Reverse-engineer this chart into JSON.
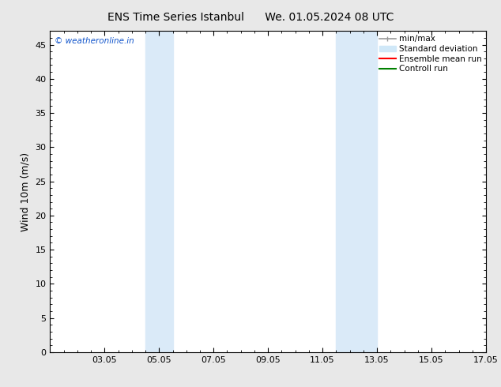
{
  "title_left": "ENS Time Series Istanbul",
  "title_right": "We. 01.05.2024 08 UTC",
  "ylabel": "Wind 10m (m/s)",
  "ylim": [
    0,
    47
  ],
  "yticks": [
    0,
    5,
    10,
    15,
    20,
    25,
    30,
    35,
    40,
    45
  ],
  "xlim": [
    1.0,
    17.0
  ],
  "xtick_labels": [
    "03.05",
    "05.05",
    "07.05",
    "09.05",
    "11.05",
    "13.05",
    "15.05",
    "17.05"
  ],
  "xtick_positions": [
    3,
    5,
    7,
    9,
    11,
    13,
    15,
    17
  ],
  "bg_color": "#e8e8e8",
  "plot_bg_color": "#ffffff",
  "shaded_bands": [
    {
      "x_start": 4.5,
      "x_end": 5.5,
      "color": "#daeaf8"
    },
    {
      "x_start": 11.5,
      "x_end": 13.0,
      "color": "#daeaf8"
    }
  ],
  "legend_items": [
    {
      "label": "min/max",
      "color": "#999999",
      "lw": 1.2,
      "ls": "-",
      "type": "line_caps"
    },
    {
      "label": "Standard deviation",
      "color": "#d0e8f8",
      "lw": 6,
      "ls": "-",
      "type": "patch"
    },
    {
      "label": "Ensemble mean run",
      "color": "#ff0000",
      "lw": 1.5,
      "ls": "-",
      "type": "line"
    },
    {
      "label": "Controll run",
      "color": "#008000",
      "lw": 1.5,
      "ls": "-",
      "type": "line"
    }
  ],
  "watermark_text": "© weatheronline.in",
  "watermark_color": "#1155cc",
  "title_fontsize": 10,
  "ylabel_fontsize": 9,
  "tick_fontsize": 8,
  "legend_fontsize": 7.5
}
